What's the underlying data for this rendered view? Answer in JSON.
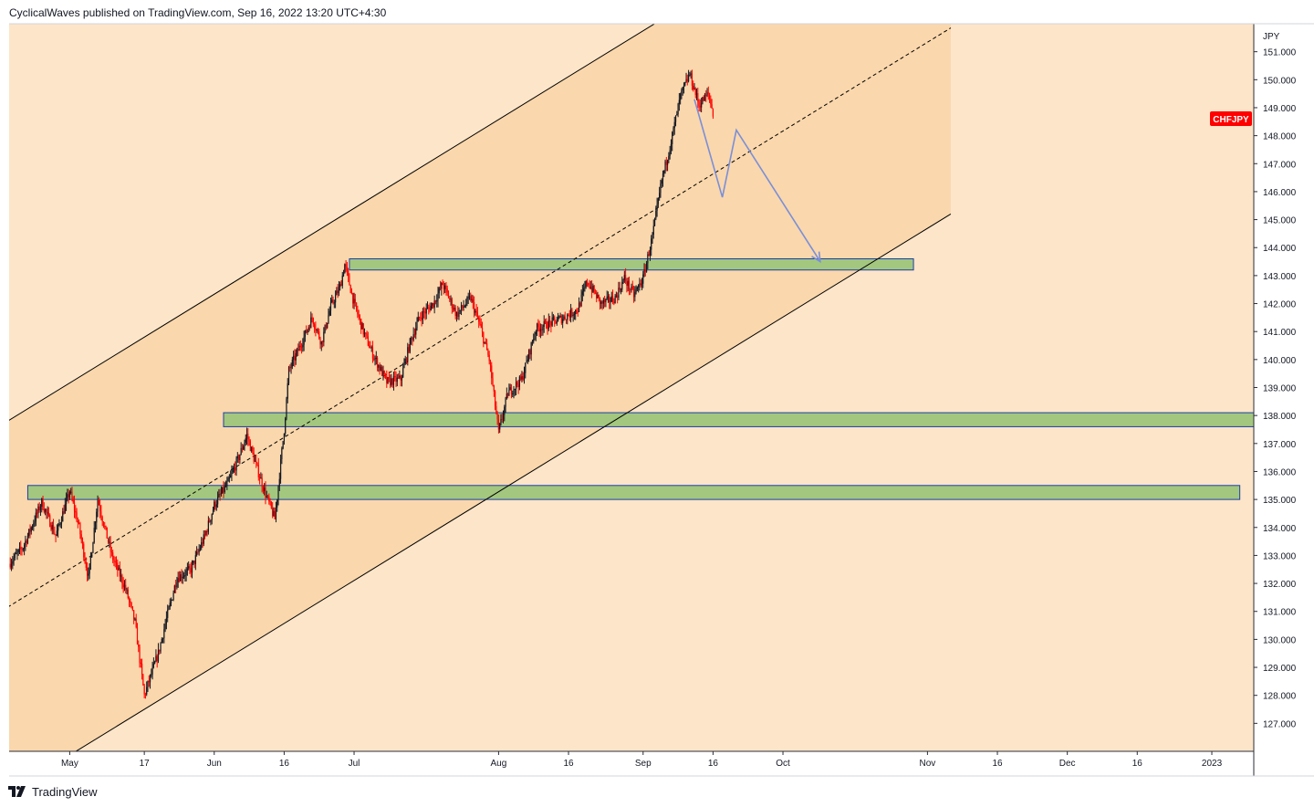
{
  "header": {
    "text": "CyclicalWaves published on TradingView.com, Sep 16, 2022 13:20 UTC+4:30"
  },
  "footer": {
    "brand": "TradingView",
    "logo_icon": "tradingview-logo-icon"
  },
  "chart_data": {
    "type": "candlestick",
    "symbol": "CHFJPY",
    "currency": "JPY",
    "symbol_badge_color": "#ff0000",
    "up_color": "#131722",
    "down_color": "#ff0000",
    "channel_fill_color": "#fad7ac",
    "background_color": "#fde5c9",
    "zone_color": "#a3c77e",
    "zone_border_color": "#1c3ea6",
    "projection_color": "#7a8fd8",
    "y_range": [
      126.0,
      152.0
    ],
    "y_ticks": [
      "151.000",
      "150.000",
      "149.000",
      "148.000",
      "147.000",
      "146.000",
      "145.000",
      "144.000",
      "143.000",
      "142.000",
      "141.000",
      "140.000",
      "139.000",
      "138.000",
      "137.000",
      "136.000",
      "135.000",
      "134.000",
      "133.000",
      "132.000",
      "131.000",
      "130.000",
      "129.000",
      "128.000",
      "127.000"
    ],
    "x_range": [
      "2022-04-18",
      "2023-01-10"
    ],
    "x_ticks": [
      {
        "label": "May",
        "date": "2022-05-01"
      },
      {
        "label": "17",
        "date": "2022-05-17"
      },
      {
        "label": "Jun",
        "date": "2022-06-01"
      },
      {
        "label": "16",
        "date": "2022-06-16"
      },
      {
        "label": "Jul",
        "date": "2022-07-01"
      },
      {
        "label": "Aug",
        "date": "2022-08-01"
      },
      {
        "label": "16",
        "date": "2022-08-16"
      },
      {
        "label": "Sep",
        "date": "2022-09-01"
      },
      {
        "label": "16",
        "date": "2022-09-16"
      },
      {
        "label": "Oct",
        "date": "2022-10-01"
      },
      {
        "label": "Nov",
        "date": "2022-11-01"
      },
      {
        "label": "16",
        "date": "2022-11-16"
      },
      {
        "label": "Dec",
        "date": "2022-12-01"
      },
      {
        "label": "16",
        "date": "2022-12-16"
      },
      {
        "label": "2023",
        "date": "2023-01-01"
      }
    ],
    "price_path": [
      [
        "2022-04-18",
        132.7
      ],
      [
        "2022-04-21",
        133.3
      ],
      [
        "2022-04-25",
        134.9
      ],
      [
        "2022-04-28",
        133.7
      ],
      [
        "2022-05-01",
        135.3
      ],
      [
        "2022-05-03",
        134.0
      ],
      [
        "2022-05-05",
        132.2
      ],
      [
        "2022-05-07",
        135.0
      ],
      [
        "2022-05-10",
        133.0
      ],
      [
        "2022-05-13",
        131.8
      ],
      [
        "2022-05-15",
        130.6
      ],
      [
        "2022-05-17",
        128.0
      ],
      [
        "2022-05-20",
        129.5
      ],
      [
        "2022-05-22",
        130.9
      ],
      [
        "2022-05-24",
        132.2
      ],
      [
        "2022-05-27",
        132.5
      ],
      [
        "2022-05-30",
        133.7
      ],
      [
        "2022-06-01",
        134.8
      ],
      [
        "2022-06-04",
        135.6
      ],
      [
        "2022-06-06",
        136.4
      ],
      [
        "2022-06-08",
        137.3
      ],
      [
        "2022-06-10",
        136.2
      ],
      [
        "2022-06-12",
        135.2
      ],
      [
        "2022-06-14",
        134.3
      ],
      [
        "2022-06-16",
        137.5
      ],
      [
        "2022-06-17",
        139.6
      ],
      [
        "2022-06-20",
        140.7
      ],
      [
        "2022-06-22",
        141.5
      ],
      [
        "2022-06-24",
        140.6
      ],
      [
        "2022-06-26",
        141.9
      ],
      [
        "2022-06-28",
        142.6
      ],
      [
        "2022-06-29",
        143.4
      ],
      [
        "2022-07-01",
        142.0
      ],
      [
        "2022-07-03",
        141.0
      ],
      [
        "2022-07-05",
        140.2
      ],
      [
        "2022-07-08",
        139.2
      ],
      [
        "2022-07-11",
        139.3
      ],
      [
        "2022-07-13",
        140.6
      ],
      [
        "2022-07-15",
        141.5
      ],
      [
        "2022-07-18",
        142.0
      ],
      [
        "2022-07-20",
        142.7
      ],
      [
        "2022-07-23",
        141.6
      ],
      [
        "2022-07-26",
        142.2
      ],
      [
        "2022-07-28",
        141.2
      ],
      [
        "2022-07-30",
        140.0
      ],
      [
        "2022-08-01",
        137.4
      ],
      [
        "2022-08-03",
        138.8
      ],
      [
        "2022-08-06",
        139.3
      ],
      [
        "2022-08-09",
        141.1
      ],
      [
        "2022-08-12",
        141.3
      ],
      [
        "2022-08-15",
        141.5
      ],
      [
        "2022-08-18",
        141.8
      ],
      [
        "2022-08-20",
        142.8
      ],
      [
        "2022-08-23",
        142.0
      ],
      [
        "2022-08-26",
        142.2
      ],
      [
        "2022-08-28",
        142.9
      ],
      [
        "2022-08-30",
        142.3
      ],
      [
        "2022-09-01",
        142.9
      ],
      [
        "2022-09-03",
        144.4
      ],
      [
        "2022-09-05",
        146.4
      ],
      [
        "2022-09-07",
        147.8
      ],
      [
        "2022-09-09",
        149.4
      ],
      [
        "2022-09-11",
        150.2
      ],
      [
        "2022-09-13",
        149.1
      ],
      [
        "2022-09-15",
        149.5
      ],
      [
        "2022-09-16",
        148.8
      ]
    ],
    "annotations": {
      "channel": {
        "lower": [
          [
            "2022-05-17",
            127.5
          ],
          [
            "2022-11-06",
            145.2
          ]
        ],
        "width": 13.3,
        "midline_style": "dashed",
        "shaded_until": "2022-11-06"
      },
      "zones": [
        {
          "from": "2022-06-30",
          "to": "2022-10-29",
          "low": 143.2,
          "high": 143.6
        },
        {
          "from": "2022-06-03",
          "to": "2023-01-16",
          "low": 137.6,
          "high": 138.1
        },
        {
          "from": "2022-04-22",
          "to": "2023-01-07",
          "low": 135.0,
          "high": 135.5
        }
      ],
      "projection": [
        [
          "2022-09-12",
          149.3
        ],
        [
          "2022-09-18",
          145.8
        ],
        [
          "2022-09-21",
          148.2
        ],
        [
          "2022-10-09",
          143.5
        ]
      ]
    }
  }
}
